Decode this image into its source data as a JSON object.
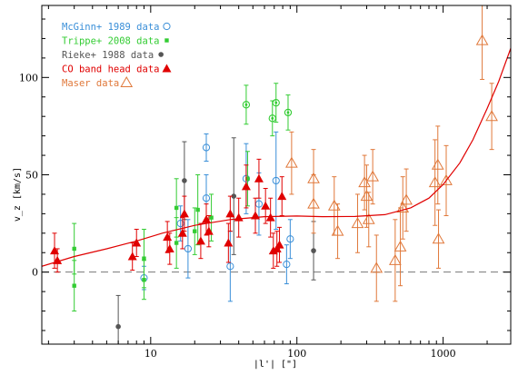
{
  "chart_data": {
    "type": "scatter",
    "xlabel": "|l'| [\"]",
    "ylabel": "v_z [km/s]",
    "xscale": "log",
    "xlim": [
      1.8,
      2900
    ],
    "ylim": [
      -37,
      137
    ],
    "x_ticks": [
      10,
      100,
      1000
    ],
    "x_tick_labels": [
      "10",
      "100",
      "1000"
    ],
    "y_ticks": [
      0,
      50,
      100
    ],
    "y_tick_labels": [
      "0",
      "50",
      "100"
    ],
    "zero_line": {
      "y": 0,
      "style": "dashed",
      "color": "#777777"
    },
    "legend_position": "top-left",
    "series": [
      {
        "name": "McGinn+ 1989 data",
        "color": "#3a8fd8",
        "marker": "open-circle",
        "points": [
          {
            "x": 9,
            "y": -3,
            "yerr": 6
          },
          {
            "x": 16,
            "y": 25,
            "yerr": 9
          },
          {
            "x": 18,
            "y": 12,
            "yerr": 15
          },
          {
            "x": 24,
            "y": 38,
            "yerr": 12
          },
          {
            "x": 24,
            "y": 64,
            "yerr": 7
          },
          {
            "x": 35,
            "y": 3,
            "yerr": 18
          },
          {
            "x": 45,
            "y": 48,
            "yerr": 18
          },
          {
            "x": 55,
            "y": 35,
            "yerr": 16
          },
          {
            "x": 72,
            "y": 47,
            "yerr": 25
          },
          {
            "x": 85,
            "y": 4,
            "yerr": 10
          },
          {
            "x": 90,
            "y": 17,
            "yerr": 10
          }
        ]
      },
      {
        "name": "Trippe+ 2008 data",
        "color": "#33cc33",
        "marker": "filled-square",
        "points": [
          {
            "x": 3,
            "y": 12,
            "yerr": 13
          },
          {
            "x": 3,
            "y": -7,
            "yerr": 13
          },
          {
            "x": 9,
            "y": 7,
            "yerr": 15
          },
          {
            "x": 9,
            "y": -4,
            "yerr": 10
          },
          {
            "x": 15,
            "y": 33,
            "yerr": 15
          },
          {
            "x": 15,
            "y": 15,
            "yerr": 13
          },
          {
            "x": 20,
            "y": 21,
            "yerr": 12
          },
          {
            "x": 21,
            "y": 32,
            "yerr": 18
          },
          {
            "x": 26,
            "y": 28,
            "yerr": 12
          },
          {
            "x": 46,
            "y": 48,
            "yerr": 14
          }
        ]
      },
      {
        "name": "Trippe+ 2008 data",
        "color": "#33cc33",
        "marker": "open-circle-dot",
        "points": [
          {
            "x": 45,
            "y": 86,
            "yerr": 10
          },
          {
            "x": 68,
            "y": 79,
            "yerr": 9
          },
          {
            "x": 72,
            "y": 87,
            "yerr": 10
          },
          {
            "x": 87,
            "y": 82,
            "yerr": 9
          }
        ]
      },
      {
        "name": "Rieke+ 1988 data",
        "color": "#555555",
        "marker": "filled-circle",
        "points": [
          {
            "x": 6,
            "y": -28,
            "yerr": 16
          },
          {
            "x": 17,
            "y": 47,
            "yerr": 20
          },
          {
            "x": 37,
            "y": 39,
            "yerr": 30
          },
          {
            "x": 130,
            "y": 11,
            "yerr": 15
          }
        ]
      },
      {
        "name": "CO band head data",
        "color": "#e00000",
        "marker": "filled-triangle",
        "points": [
          {
            "x": 2.2,
            "y": 11,
            "yerr": 9
          },
          {
            "x": 2.3,
            "y": 6,
            "yerr": 6
          },
          {
            "x": 7.5,
            "y": 8,
            "yerr": 7
          },
          {
            "x": 8,
            "y": 15,
            "yerr": 7
          },
          {
            "x": 13,
            "y": 18,
            "yerr": 8
          },
          {
            "x": 13.5,
            "y": 12,
            "yerr": 8
          },
          {
            "x": 16.5,
            "y": 20,
            "yerr": 8
          },
          {
            "x": 17,
            "y": 30,
            "yerr": 9
          },
          {
            "x": 22,
            "y": 16,
            "yerr": 9
          },
          {
            "x": 24,
            "y": 27,
            "yerr": 8
          },
          {
            "x": 25,
            "y": 21,
            "yerr": 8
          },
          {
            "x": 34,
            "y": 15,
            "yerr": 10
          },
          {
            "x": 35,
            "y": 30,
            "yerr": 9
          },
          {
            "x": 40,
            "y": 28,
            "yerr": 10
          },
          {
            "x": 45,
            "y": 44,
            "yerr": 11
          },
          {
            "x": 52,
            "y": 29,
            "yerr": 9
          },
          {
            "x": 55,
            "y": 48,
            "yerr": 10
          },
          {
            "x": 61,
            "y": 34,
            "yerr": 9
          },
          {
            "x": 66,
            "y": 28,
            "yerr": 10
          },
          {
            "x": 69,
            "y": 11,
            "yerr": 9
          },
          {
            "x": 73,
            "y": 12,
            "yerr": 9
          },
          {
            "x": 76,
            "y": 14,
            "yerr": 9
          },
          {
            "x": 79,
            "y": 39,
            "yerr": 10
          }
        ]
      },
      {
        "name": "Maser data",
        "color": "#e0783a",
        "marker": "open-triangle",
        "points": [
          {
            "x": 92,
            "y": 56,
            "yerr": 16
          },
          {
            "x": 130,
            "y": 48,
            "yerr": 15
          },
          {
            "x": 130,
            "y": 35,
            "yerr": 15
          },
          {
            "x": 180,
            "y": 34,
            "yerr": 15
          },
          {
            "x": 190,
            "y": 21,
            "yerr": 14
          },
          {
            "x": 260,
            "y": 25,
            "yerr": 15
          },
          {
            "x": 290,
            "y": 46,
            "yerr": 14
          },
          {
            "x": 300,
            "y": 39,
            "yerr": 16
          },
          {
            "x": 310,
            "y": 27,
            "yerr": 14
          },
          {
            "x": 330,
            "y": 49,
            "yerr": 14
          },
          {
            "x": 350,
            "y": 2,
            "yerr": 17
          },
          {
            "x": 470,
            "y": 6,
            "yerr": 21
          },
          {
            "x": 510,
            "y": 13,
            "yerr": 20
          },
          {
            "x": 530,
            "y": 33,
            "yerr": 16
          },
          {
            "x": 560,
            "y": 37,
            "yerr": 16
          },
          {
            "x": 880,
            "y": 46,
            "yerr": 22
          },
          {
            "x": 920,
            "y": 55,
            "yerr": 20
          },
          {
            "x": 930,
            "y": 17,
            "yerr": 15
          },
          {
            "x": 1050,
            "y": 47,
            "yerr": 18
          },
          {
            "x": 1850,
            "y": 119,
            "yerr": 20
          },
          {
            "x": 2150,
            "y": 80,
            "yerr": 17
          }
        ]
      }
    ],
    "model_curve": {
      "color": "#e00000",
      "points": [
        {
          "x": 1.8,
          "y": 3
        },
        {
          "x": 3,
          "y": 8
        },
        {
          "x": 5,
          "y": 12
        },
        {
          "x": 8,
          "y": 16
        },
        {
          "x": 12,
          "y": 20
        },
        {
          "x": 20,
          "y": 24
        },
        {
          "x": 35,
          "y": 27
        },
        {
          "x": 60,
          "y": 28.5
        },
        {
          "x": 100,
          "y": 28.8
        },
        {
          "x": 150,
          "y": 28.5
        },
        {
          "x": 250,
          "y": 28.6
        },
        {
          "x": 400,
          "y": 29.5
        },
        {
          "x": 600,
          "y": 33
        },
        {
          "x": 800,
          "y": 38
        },
        {
          "x": 1000,
          "y": 45
        },
        {
          "x": 1300,
          "y": 56
        },
        {
          "x": 1600,
          "y": 68
        },
        {
          "x": 2000,
          "y": 84
        },
        {
          "x": 2400,
          "y": 98
        },
        {
          "x": 2900,
          "y": 115
        }
      ]
    }
  },
  "legend": [
    {
      "label": "McGinn+ 1989 data",
      "color": "#3a8fd8",
      "marker": "open-circle"
    },
    {
      "label": "Trippe+ 2008 data",
      "color": "#33cc33",
      "marker": "filled-square"
    },
    {
      "label": "Rieke+ 1988 data",
      "color": "#555555",
      "marker": "filled-circle"
    },
    {
      "label": "CO band head data",
      "color": "#e00000",
      "marker": "filled-triangle"
    },
    {
      "label": "Maser data",
      "color": "#e0783a",
      "marker": "open-triangle"
    }
  ]
}
